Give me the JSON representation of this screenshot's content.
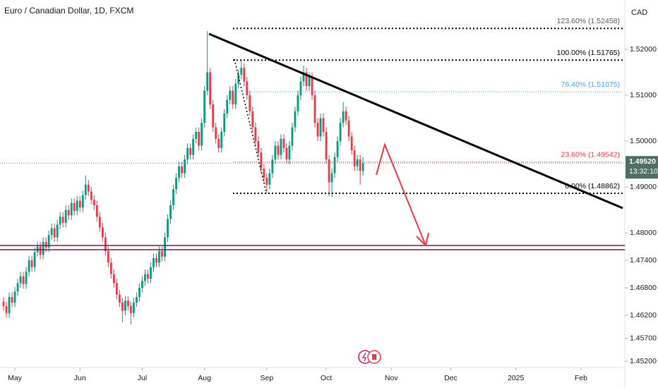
{
  "chart_data": {
    "type": "candlestick",
    "title": "Euro / Canadian Dollar, 1D, FXCM",
    "currency": "CAD",
    "up_color": "#089981",
    "down_color": "#f23645",
    "ohlc": [
      [
        1.465,
        1.466,
        1.463,
        1.464
      ],
      [
        1.464,
        1.465,
        1.4615,
        1.4625
      ],
      [
        1.4625,
        1.467,
        1.4615,
        1.466
      ],
      [
        1.466,
        1.467,
        1.4638,
        1.4648
      ],
      [
        1.4648,
        1.4682,
        1.4638,
        1.4672
      ],
      [
        1.4672,
        1.47,
        1.4662,
        1.469
      ],
      [
        1.469,
        1.4715,
        1.468,
        1.4705
      ],
      [
        1.4705,
        1.4715,
        1.4678,
        1.4688
      ],
      [
        1.4688,
        1.4725,
        1.4678,
        1.4715
      ],
      [
        1.4715,
        1.475,
        1.4705,
        1.474
      ],
      [
        1.474,
        1.475,
        1.4715,
        1.4725
      ],
      [
        1.4725,
        1.4768,
        1.4715,
        1.4758
      ],
      [
        1.4758,
        1.478,
        1.4748,
        1.477
      ],
      [
        1.477,
        1.478,
        1.4742,
        1.4752
      ],
      [
        1.4752,
        1.479,
        1.4742,
        1.478
      ],
      [
        1.478,
        1.479,
        1.4758,
        1.4768
      ],
      [
        1.4768,
        1.4805,
        1.4758,
        1.4795
      ],
      [
        1.4795,
        1.482,
        1.4785,
        1.481
      ],
      [
        1.481,
        1.482,
        1.478,
        1.479
      ],
      [
        1.479,
        1.4828,
        1.478,
        1.4818
      ],
      [
        1.4818,
        1.4845,
        1.4808,
        1.4835
      ],
      [
        1.4835,
        1.4845,
        1.4812,
        1.4822
      ],
      [
        1.4822,
        1.486,
        1.4812,
        1.485
      ],
      [
        1.485,
        1.486,
        1.4828,
        1.4838
      ],
      [
        1.4838,
        1.4875,
        1.4828,
        1.4865
      ],
      [
        1.4865,
        1.4875,
        1.4838,
        1.4848
      ],
      [
        1.4848,
        1.488,
        1.4838,
        1.487
      ],
      [
        1.487,
        1.488,
        1.4845,
        1.4855
      ],
      [
        1.4855,
        1.4892,
        1.4845,
        1.4882
      ],
      [
        1.4882,
        1.4925,
        1.4872,
        1.4905
      ],
      [
        1.4905,
        1.4915,
        1.488,
        1.489
      ],
      [
        1.489,
        1.49,
        1.4862,
        1.4872
      ],
      [
        1.4872,
        1.4882,
        1.485,
        1.486
      ],
      [
        1.486,
        1.487,
        1.4825,
        1.4835
      ],
      [
        1.4835,
        1.4845,
        1.4802,
        1.4812
      ],
      [
        1.4812,
        1.4822,
        1.478,
        1.479
      ],
      [
        1.479,
        1.48,
        1.475,
        1.476
      ],
      [
        1.476,
        1.477,
        1.4725,
        1.4735
      ],
      [
        1.4735,
        1.4745,
        1.47,
        1.471
      ],
      [
        1.471,
        1.472,
        1.468,
        1.469
      ],
      [
        1.469,
        1.47,
        1.4655,
        1.4665
      ],
      [
        1.4665,
        1.4675,
        1.4638,
        1.4648
      ],
      [
        1.4648,
        1.4658,
        1.4605,
        1.463
      ],
      [
        1.463,
        1.4662,
        1.462,
        1.4652
      ],
      [
        1.4652,
        1.4662,
        1.463,
        1.464
      ],
      [
        1.464,
        1.465,
        1.46,
        1.4625
      ],
      [
        1.4625,
        1.4658,
        1.4615,
        1.4648
      ],
      [
        1.4648,
        1.467,
        1.4638,
        1.466
      ],
      [
        1.466,
        1.469,
        1.465,
        1.468
      ],
      [
        1.468,
        1.4705,
        1.467,
        1.4695
      ],
      [
        1.4695,
        1.472,
        1.4685,
        1.471
      ],
      [
        1.471,
        1.472,
        1.469,
        1.47
      ],
      [
        1.47,
        1.4735,
        1.469,
        1.4725
      ],
      [
        1.4725,
        1.4755,
        1.4715,
        1.4745
      ],
      [
        1.4745,
        1.4755,
        1.4725,
        1.4735
      ],
      [
        1.4735,
        1.477,
        1.4725,
        1.476
      ],
      [
        1.476,
        1.477,
        1.4738,
        1.4748
      ],
      [
        1.4748,
        1.48,
        1.4738,
        1.479
      ],
      [
        1.479,
        1.484,
        1.478,
        1.483
      ],
      [
        1.483,
        1.487,
        1.482,
        1.486
      ],
      [
        1.486,
        1.4905,
        1.485,
        1.4895
      ],
      [
        1.4895,
        1.493,
        1.4885,
        1.492
      ],
      [
        1.492,
        1.4955,
        1.491,
        1.4945
      ],
      [
        1.4945,
        1.4955,
        1.492,
        1.493
      ],
      [
        1.493,
        1.497,
        1.492,
        1.496
      ],
      [
        1.496,
        1.4995,
        1.495,
        1.4985
      ],
      [
        1.4985,
        1.4995,
        1.496,
        1.497
      ],
      [
        1.497,
        1.5015,
        1.496,
        1.5005
      ],
      [
        1.5005,
        1.503,
        1.4995,
        1.502
      ],
      [
        1.502,
        1.503,
        1.498,
        1.499
      ],
      [
        1.499,
        1.505,
        1.498,
        1.504
      ],
      [
        1.504,
        1.512,
        1.503,
        1.511
      ],
      [
        1.511,
        1.524,
        1.51,
        1.515
      ],
      [
        1.515,
        1.516,
        1.507,
        1.508
      ],
      [
        1.508,
        1.509,
        1.502,
        1.503
      ],
      [
        1.503,
        1.504,
        1.4995,
        1.5005
      ],
      [
        1.5005,
        1.5015,
        1.4975,
        1.4985
      ],
      [
        1.4985,
        1.503,
        1.4975,
        1.502
      ],
      [
        1.502,
        1.507,
        1.501,
        1.506
      ],
      [
        1.506,
        1.51,
        1.505,
        1.509
      ],
      [
        1.509,
        1.512,
        1.508,
        1.511
      ],
      [
        1.511,
        1.512,
        1.507,
        1.508
      ],
      [
        1.508,
        1.5135,
        1.507,
        1.5125
      ],
      [
        1.5125,
        1.5155,
        1.5115,
        1.5145
      ],
      [
        1.5145,
        1.5178,
        1.5135,
        1.516
      ],
      [
        1.516,
        1.517,
        1.512,
        1.513
      ],
      [
        1.513,
        1.514,
        1.509,
        1.51
      ],
      [
        1.51,
        1.511,
        1.5055,
        1.5065
      ],
      [
        1.5065,
        1.5075,
        1.502,
        1.503
      ],
      [
        1.503,
        1.504,
        1.499,
        1.5
      ],
      [
        1.5,
        1.501,
        1.4965,
        1.4975
      ],
      [
        1.4975,
        1.4985,
        1.493,
        1.494
      ],
      [
        1.494,
        1.495,
        1.491,
        1.492
      ],
      [
        1.492,
        1.493,
        1.4886,
        1.4905
      ],
      [
        1.4905,
        1.494,
        1.4895,
        1.493
      ],
      [
        1.493,
        1.497,
        1.492,
        1.496
      ],
      [
        1.496,
        1.5,
        1.495,
        1.499
      ],
      [
        1.499,
        1.5,
        1.496,
        1.497
      ],
      [
        1.497,
        1.5015,
        1.496,
        1.5005
      ],
      [
        1.5005,
        1.5015,
        1.4975,
        1.4985
      ],
      [
        1.4985,
        1.4995,
        1.495,
        1.496
      ],
      [
        1.496,
        1.5,
        1.495,
        1.499
      ],
      [
        1.499,
        1.504,
        1.498,
        1.503
      ],
      [
        1.503,
        1.5075,
        1.502,
        1.5065
      ],
      [
        1.5065,
        1.511,
        1.5055,
        1.51
      ],
      [
        1.51,
        1.514,
        1.509,
        1.513
      ],
      [
        1.513,
        1.5165,
        1.512,
        1.515
      ],
      [
        1.515,
        1.516,
        1.511,
        1.512
      ],
      [
        1.512,
        1.515,
        1.511,
        1.514
      ],
      [
        1.514,
        1.515,
        1.509,
        1.51
      ],
      [
        1.51,
        1.511,
        1.503,
        1.504
      ],
      [
        1.504,
        1.505,
        1.5,
        1.501
      ],
      [
        1.501,
        1.506,
        1.5,
        1.505
      ],
      [
        1.505,
        1.506,
        1.501,
        1.502
      ],
      [
        1.502,
        1.503,
        1.495,
        1.496
      ],
      [
        1.496,
        1.497,
        1.488,
        1.491
      ],
      [
        1.491,
        1.494,
        1.4878,
        1.493
      ],
      [
        1.493,
        1.4975,
        1.492,
        1.4965
      ],
      [
        1.4965,
        1.501,
        1.4955,
        1.5
      ],
      [
        1.5,
        1.505,
        1.499,
        1.504
      ],
      [
        1.504,
        1.5085,
        1.503,
        1.5065
      ],
      [
        1.5065,
        1.5075,
        1.5035,
        1.5045
      ],
      [
        1.5045,
        1.5055,
        1.5,
        1.501
      ],
      [
        1.501,
        1.502,
        1.497,
        1.498
      ],
      [
        1.498,
        1.499,
        1.4935,
        1.4945
      ],
      [
        1.4945,
        1.497,
        1.4935,
        1.496
      ],
      [
        1.496,
        1.497,
        1.4905,
        1.4935
      ],
      [
        1.4935,
        1.4965,
        1.4925,
        1.4952
      ]
    ],
    "xlim": [
      -1.25,
      219.5
    ],
    "xticks": [
      {
        "value": 4,
        "label": "May"
      },
      {
        "value": 27,
        "label": "Jun"
      },
      {
        "value": 49,
        "label": "Jul"
      },
      {
        "value": 71,
        "label": "Aug"
      },
      {
        "value": 93,
        "label": "Sep"
      },
      {
        "value": 114,
        "label": "Oct"
      },
      {
        "value": 137,
        "label": "Nov"
      },
      {
        "value": 158,
        "label": "Dec"
      },
      {
        "value": 181,
        "label": "2025"
      },
      {
        "value": 204,
        "label": "Feb"
      }
    ],
    "ylim": [
      1.45077,
      1.53077
    ],
    "yticks": [
      {
        "value": 1.52,
        "label": "1.52000"
      },
      {
        "value": 1.51,
        "label": "1.51000"
      },
      {
        "value": 1.5,
        "label": "1.50000"
      },
      {
        "value": 1.49,
        "label": "1.49000"
      },
      {
        "value": 1.48,
        "label": "1.48000"
      },
      {
        "value": 1.474,
        "label": "1.47400"
      },
      {
        "value": 1.468,
        "label": "1.46800"
      },
      {
        "value": 1.462,
        "label": "1.46200"
      },
      {
        "value": 1.457,
        "label": "1.45700"
      },
      {
        "value": 1.452,
        "label": "1.45200"
      }
    ],
    "last_price": {
      "value": 1.4952,
      "label": "1.49520",
      "countdown": "13:32:10",
      "color": "#4f6f63"
    },
    "fib_levels": [
      {
        "label": "123.60% (1.52458)",
        "value": 1.52458,
        "color": "#000000"
      },
      {
        "label": "100.00% (1.51765)",
        "value": 1.51765,
        "color": "#000000"
      },
      {
        "label": "76.40% (1.51075)",
        "value": 1.51075,
        "color": "#42a5f5"
      },
      {
        "label": "23.60% (1.49542)",
        "value": 1.49542,
        "color": "#f23645"
      },
      {
        "label": "0.00% (1.48862)",
        "value": 1.48862,
        "color": "#000000"
      }
    ]
  }
}
